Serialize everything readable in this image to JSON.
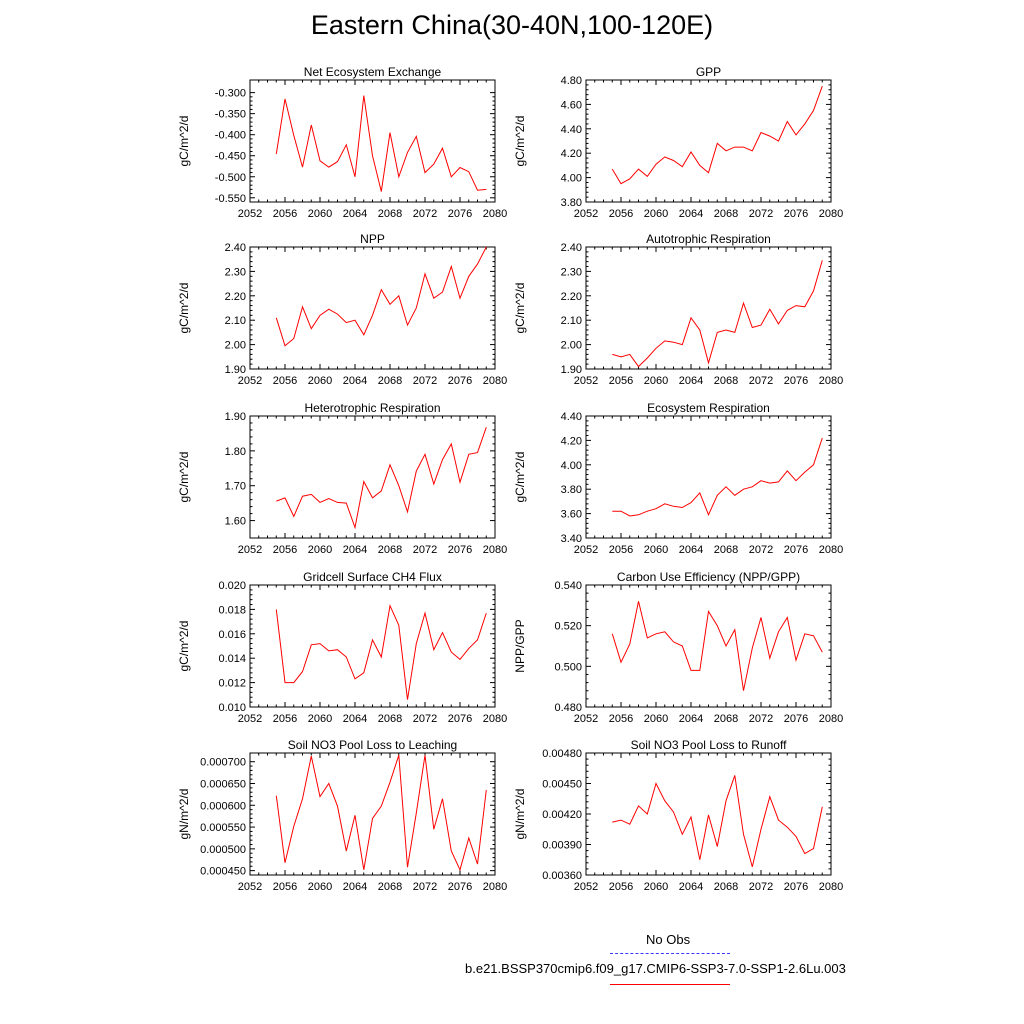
{
  "title": "Eastern China(30-40N,100-120E)",
  "legend": {
    "obs_label": "No Obs",
    "run_label": "b.e21.BSSP370cmip6.f09_g17.CMIP6-SSP3-7.0-SSP1-2.6Lu.003",
    "obs_color": "#3a3aff",
    "run_color": "#ff0000"
  },
  "chart_data": [
    {
      "type": "line",
      "title": "Net Ecosystem Exchange",
      "ylabel": "gC/m^2/d",
      "xlim": [
        2052,
        2080
      ],
      "xticks": [
        "2052",
        "2056",
        "2060",
        "2064",
        "2068",
        "2072",
        "2076",
        "2080"
      ],
      "ylim": [
        -0.56,
        -0.27
      ],
      "yticks": [
        "-0.550",
        "-0.500",
        "-0.450",
        "-0.400",
        "-0.350",
        "-0.300"
      ],
      "x": [
        2055,
        2056,
        2057,
        2058,
        2059,
        2060,
        2061,
        2062,
        2063,
        2064,
        2065,
        2066,
        2067,
        2068,
        2069,
        2070,
        2071,
        2072,
        2073,
        2074,
        2075,
        2076,
        2077,
        2078,
        2079
      ],
      "series": [
        {
          "color": "#ff0000",
          "values": [
            -0.446,
            -0.315,
            -0.402,
            -0.477,
            -0.377,
            -0.462,
            -0.477,
            -0.464,
            -0.424,
            -0.5,
            -0.307,
            -0.45,
            -0.535,
            -0.395,
            -0.5,
            -0.442,
            -0.404,
            -0.49,
            -0.47,
            -0.432,
            -0.5,
            -0.478,
            -0.488,
            -0.532,
            -0.53
          ]
        }
      ]
    },
    {
      "type": "line",
      "title": "GPP",
      "ylabel": "gC/m^2/d",
      "xlim": [
        2052,
        2080
      ],
      "xticks": [
        "2052",
        "2056",
        "2060",
        "2064",
        "2068",
        "2072",
        "2076",
        "2080"
      ],
      "ylim": [
        3.8,
        4.8
      ],
      "yticks": [
        "3.80",
        "4.00",
        "4.20",
        "4.40",
        "4.60",
        "4.80"
      ],
      "x": [
        2055,
        2056,
        2057,
        2058,
        2059,
        2060,
        2061,
        2062,
        2063,
        2064,
        2065,
        2066,
        2067,
        2068,
        2069,
        2070,
        2071,
        2072,
        2073,
        2074,
        2075,
        2076,
        2077,
        2078,
        2079
      ],
      "series": [
        {
          "color": "#ff0000",
          "values": [
            4.07,
            3.95,
            3.99,
            4.07,
            4.01,
            4.11,
            4.17,
            4.14,
            4.09,
            4.21,
            4.1,
            4.04,
            4.28,
            4.22,
            4.25,
            4.25,
            4.22,
            4.37,
            4.34,
            4.3,
            4.46,
            4.35,
            4.44,
            4.55,
            4.75
          ]
        }
      ]
    },
    {
      "type": "line",
      "title": "NPP",
      "ylabel": "gC/m^2/d",
      "xlim": [
        2052,
        2080
      ],
      "xticks": [
        "2052",
        "2056",
        "2060",
        "2064",
        "2068",
        "2072",
        "2076",
        "2080"
      ],
      "ylim": [
        1.9,
        2.4
      ],
      "yticks": [
        "1.90",
        "2.00",
        "2.10",
        "2.20",
        "2.30",
        "2.40"
      ],
      "x": [
        2055,
        2056,
        2057,
        2058,
        2059,
        2060,
        2061,
        2062,
        2063,
        2064,
        2065,
        2066,
        2067,
        2068,
        2069,
        2070,
        2071,
        2072,
        2073,
        2074,
        2075,
        2076,
        2077,
        2078,
        2079
      ],
      "series": [
        {
          "color": "#ff0000",
          "values": [
            2.11,
            1.995,
            2.025,
            2.155,
            2.065,
            2.12,
            2.145,
            2.125,
            2.09,
            2.1,
            2.04,
            2.12,
            2.225,
            2.165,
            2.2,
            2.08,
            2.15,
            2.29,
            2.19,
            2.215,
            2.32,
            2.19,
            2.28,
            2.33,
            2.4
          ]
        }
      ]
    },
    {
      "type": "line",
      "title": "Autotrophic Respiration",
      "ylabel": "gC/m^2/d",
      "xlim": [
        2052,
        2080
      ],
      "xticks": [
        "2052",
        "2056",
        "2060",
        "2064",
        "2068",
        "2072",
        "2076",
        "2080"
      ],
      "ylim": [
        1.9,
        2.4
      ],
      "yticks": [
        "1.90",
        "2.00",
        "2.10",
        "2.20",
        "2.30",
        "2.40"
      ],
      "x": [
        2055,
        2056,
        2057,
        2058,
        2059,
        2060,
        2061,
        2062,
        2063,
        2064,
        2065,
        2066,
        2067,
        2068,
        2069,
        2070,
        2071,
        2072,
        2073,
        2074,
        2075,
        2076,
        2077,
        2078,
        2079
      ],
      "series": [
        {
          "color": "#ff0000",
          "values": [
            1.96,
            1.95,
            1.96,
            1.91,
            1.945,
            1.985,
            2.015,
            2.01,
            2.0,
            2.11,
            2.06,
            1.925,
            2.05,
            2.06,
            2.05,
            2.17,
            2.07,
            2.08,
            2.145,
            2.085,
            2.14,
            2.16,
            2.155,
            2.22,
            2.345
          ]
        }
      ]
    },
    {
      "type": "line",
      "title": "Heterotrophic Respiration",
      "ylabel": "gC/m^2/d",
      "xlim": [
        2052,
        2080
      ],
      "xticks": [
        "2052",
        "2056",
        "2060",
        "2064",
        "2068",
        "2072",
        "2076",
        "2080"
      ],
      "ylim": [
        1.55,
        1.9
      ],
      "yticks": [
        "1.60",
        "1.70",
        "1.80",
        "1.90"
      ],
      "x": [
        2055,
        2056,
        2057,
        2058,
        2059,
        2060,
        2061,
        2062,
        2063,
        2064,
        2065,
        2066,
        2067,
        2068,
        2069,
        2070,
        2071,
        2072,
        2073,
        2074,
        2075,
        2076,
        2077,
        2078,
        2079
      ],
      "series": [
        {
          "color": "#ff0000",
          "values": [
            1.656,
            1.665,
            1.612,
            1.67,
            1.675,
            1.652,
            1.663,
            1.652,
            1.65,
            1.58,
            1.712,
            1.665,
            1.685,
            1.76,
            1.7,
            1.625,
            1.742,
            1.79,
            1.705,
            1.775,
            1.82,
            1.71,
            1.79,
            1.795,
            1.868
          ]
        }
      ]
    },
    {
      "type": "line",
      "title": "Ecosystem Respiration",
      "ylabel": "gC/m^2/d",
      "xlim": [
        2052,
        2080
      ],
      "xticks": [
        "2052",
        "2056",
        "2060",
        "2064",
        "2068",
        "2072",
        "2076",
        "2080"
      ],
      "ylim": [
        3.4,
        4.4
      ],
      "yticks": [
        "3.40",
        "3.60",
        "3.80",
        "4.00",
        "4.20",
        "4.40"
      ],
      "x": [
        2055,
        2056,
        2057,
        2058,
        2059,
        2060,
        2061,
        2062,
        2063,
        2064,
        2065,
        2066,
        2067,
        2068,
        2069,
        2070,
        2071,
        2072,
        2073,
        2074,
        2075,
        2076,
        2077,
        2078,
        2079
      ],
      "series": [
        {
          "color": "#ff0000",
          "values": [
            3.62,
            3.62,
            3.58,
            3.59,
            3.62,
            3.64,
            3.68,
            3.66,
            3.65,
            3.69,
            3.77,
            3.59,
            3.75,
            3.82,
            3.75,
            3.8,
            3.82,
            3.87,
            3.85,
            3.86,
            3.95,
            3.87,
            3.94,
            4.0,
            4.22
          ]
        }
      ]
    },
    {
      "type": "line",
      "title": "Gridcell Surface CH4 Flux",
      "ylabel": "gC/m^2/d",
      "xlim": [
        2052,
        2080
      ],
      "xticks": [
        "2052",
        "2056",
        "2060",
        "2064",
        "2068",
        "2072",
        "2076",
        "2080"
      ],
      "ylim": [
        0.01,
        0.02
      ],
      "yticks": [
        "0.010",
        "0.012",
        "0.014",
        "0.016",
        "0.018",
        "0.020"
      ],
      "x": [
        2055,
        2056,
        2057,
        2058,
        2059,
        2060,
        2061,
        2062,
        2063,
        2064,
        2065,
        2066,
        2067,
        2068,
        2069,
        2070,
        2071,
        2072,
        2073,
        2074,
        2075,
        2076,
        2077,
        2078,
        2079
      ],
      "series": [
        {
          "color": "#ff0000",
          "values": [
            0.018,
            0.012,
            0.012,
            0.0129,
            0.0151,
            0.0152,
            0.0146,
            0.0147,
            0.0141,
            0.0123,
            0.0128,
            0.0155,
            0.0141,
            0.0183,
            0.0167,
            0.0106,
            0.0152,
            0.0177,
            0.0147,
            0.0161,
            0.0145,
            0.0139,
            0.0148,
            0.0155,
            0.0177
          ]
        }
      ]
    },
    {
      "type": "line",
      "title": "Carbon Use Efficiency (NPP/GPP)",
      "ylabel": "NPP/GPP",
      "xlim": [
        2052,
        2080
      ],
      "xticks": [
        "2052",
        "2056",
        "2060",
        "2064",
        "2068",
        "2072",
        "2076",
        "2080"
      ],
      "ylim": [
        0.48,
        0.54
      ],
      "yticks": [
        "0.480",
        "0.500",
        "0.520",
        "0.540"
      ],
      "x": [
        2055,
        2056,
        2057,
        2058,
        2059,
        2060,
        2061,
        2062,
        2063,
        2064,
        2065,
        2066,
        2067,
        2068,
        2069,
        2070,
        2071,
        2072,
        2073,
        2074,
        2075,
        2076,
        2077,
        2078,
        2079
      ],
      "series": [
        {
          "color": "#ff0000",
          "values": [
            0.516,
            0.502,
            0.511,
            0.532,
            0.514,
            0.516,
            0.517,
            0.512,
            0.51,
            0.498,
            0.498,
            0.527,
            0.52,
            0.51,
            0.518,
            0.488,
            0.509,
            0.524,
            0.504,
            0.517,
            0.524,
            0.503,
            0.516,
            0.515,
            0.507
          ]
        }
      ]
    },
    {
      "type": "line",
      "title": "Soil NO3 Pool Loss to Leaching",
      "ylabel": "gN/m^2/d",
      "xlim": [
        2052,
        2080
      ],
      "xticks": [
        "2052",
        "2056",
        "2060",
        "2064",
        "2068",
        "2072",
        "2076",
        "2080"
      ],
      "ylim": [
        0.00044,
        0.00072
      ],
      "yticks": [
        "0.000450",
        "0.000500",
        "0.000550",
        "0.000600",
        "0.000650",
        "0.000700"
      ],
      "x": [
        2055,
        2056,
        2057,
        2058,
        2059,
        2060,
        2061,
        2062,
        2063,
        2064,
        2065,
        2066,
        2067,
        2068,
        2069,
        2070,
        2071,
        2072,
        2073,
        2074,
        2075,
        2076,
        2077,
        2078,
        2079
      ],
      "series": [
        {
          "color": "#ff0000",
          "values": [
            0.000622,
            0.000468,
            0.000552,
            0.000615,
            0.000713,
            0.00062,
            0.00065,
            0.000598,
            0.000495,
            0.000577,
            0.000452,
            0.00057,
            0.000598,
            0.000653,
            0.000715,
            0.000458,
            0.000582,
            0.000715,
            0.000545,
            0.000615,
            0.000495,
            0.000452,
            0.000525,
            0.000465,
            0.000635
          ]
        }
      ]
    },
    {
      "type": "line",
      "title": "Soil NO3 Pool Loss to Runoff",
      "ylabel": "gN/m^2/d",
      "xlim": [
        2052,
        2080
      ],
      "xticks": [
        "2052",
        "2056",
        "2060",
        "2064",
        "2068",
        "2072",
        "2076",
        "2080"
      ],
      "ylim": [
        0.0036,
        0.0048
      ],
      "yticks": [
        "0.00360",
        "0.00390",
        "0.00420",
        "0.00450",
        "0.00480"
      ],
      "x": [
        2055,
        2056,
        2057,
        2058,
        2059,
        2060,
        2061,
        2062,
        2063,
        2064,
        2065,
        2066,
        2067,
        2068,
        2069,
        2070,
        2071,
        2072,
        2073,
        2074,
        2075,
        2076,
        2077,
        2078,
        2079
      ],
      "series": [
        {
          "color": "#ff0000",
          "values": [
            0.00412,
            0.00414,
            0.0041,
            0.00428,
            0.0042,
            0.0045,
            0.00433,
            0.00422,
            0.004,
            0.00417,
            0.00375,
            0.00419,
            0.00388,
            0.00433,
            0.00458,
            0.004,
            0.00368,
            0.00405,
            0.00437,
            0.00414,
            0.00407,
            0.00398,
            0.00381,
            0.00386,
            0.00427
          ]
        }
      ]
    }
  ]
}
